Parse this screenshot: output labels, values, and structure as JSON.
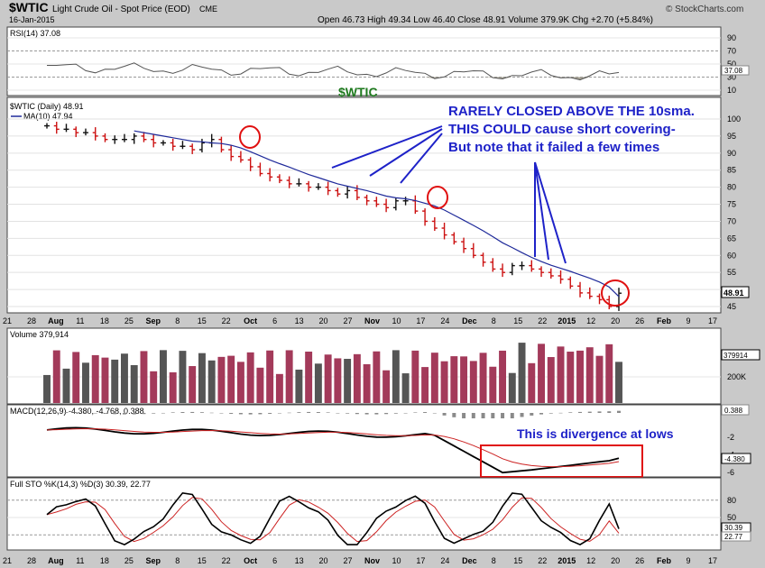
{
  "header": {
    "symbol": "$WTIC",
    "name": "Light Crude Oil - Spot Price (EOD)",
    "exchange": "CME",
    "date": "16-Jan-2015",
    "source": "© StockCharts.com",
    "ohlc": "Open 46.73  High 49.34  Low 46.40  Close 48.91  Volume 379.9K  Chg +2.70 (+5.84%)",
    "chg_arrow": "▲"
  },
  "panels": {
    "rsi": {
      "legend": "RSI(14) 37.08",
      "value_tag": "37.08",
      "ticks": [
        "90",
        "70",
        "50",
        "30",
        "10"
      ],
      "overlay": "$WTIC"
    },
    "price": {
      "legend_1": "$WTIC (Daily) 48.91",
      "legend_2": "MA(10) 47.94",
      "value_tag": "48.91",
      "ticks": [
        "100",
        "95",
        "90",
        "85",
        "80",
        "75",
        "70",
        "65",
        "60",
        "55",
        "50",
        "45"
      ]
    },
    "volume": {
      "legend": "Volume 379,914",
      "value_tag": "379914",
      "ticks": [
        "200K"
      ]
    },
    "macd": {
      "legend": "MACD(12,26,9) -4.380, -4.768, 0.388",
      "value_tag_1": "0.388",
      "value_tag_2": "-4.380",
      "ticks": [
        "-2",
        "-4",
        "-6"
      ]
    },
    "sto": {
      "legend": "Full STO %K(14,3) %D(3) 30.39, 22.77",
      "value_tag_1": "30.39",
      "value_tag_2": "22.77",
      "ticks": [
        "80",
        "50",
        "20"
      ]
    }
  },
  "date_axis": [
    "21",
    "28",
    "Aug",
    "11",
    "18",
    "25",
    "Sep",
    "8",
    "15",
    "22",
    "Oct",
    "6",
    "13",
    "20",
    "27",
    "Nov",
    "10",
    "17",
    "24",
    "Dec",
    "8",
    "15",
    "22",
    "2015",
    "12",
    "20",
    "26",
    "Feb",
    "9",
    "17"
  ],
  "annotations": {
    "main_line_1": "RARELY CLOSED ABOVE THE 10sma.",
    "main_line_2": "THIS COULD cause short covering-",
    "main_line_3": "But note that it failed a few times",
    "macd_note": "This is divergence at lows"
  },
  "colors": {
    "up": "#111111",
    "down": "#cc1111",
    "ma": "#1f2a9a",
    "vol_up": "#555555",
    "vol_down": "#a33a5a",
    "annotation": "#1e22c8",
    "circle": "#e01010",
    "sto_k": "#000000",
    "sto_d": "#cc2222"
  },
  "chart_data": {
    "type": "line",
    "price_axis_range": [
      45,
      100
    ],
    "close_series_approx": [
      98,
      97,
      97,
      96,
      96,
      95,
      94,
      94,
      94,
      95,
      94,
      93,
      93,
      92,
      92,
      91,
      93,
      94,
      91,
      89,
      88,
      86,
      84,
      83,
      82,
      81,
      81,
      80,
      80,
      79,
      78,
      79,
      77,
      76,
      75,
      74,
      76,
      76,
      73,
      70,
      68,
      66,
      64,
      62,
      60,
      58,
      56,
      55,
      57,
      57,
      56,
      55,
      54,
      53,
      51,
      49,
      48,
      47,
      45,
      48.91
    ],
    "ma10_approx": [
      null,
      null,
      null,
      null,
      null,
      null,
      null,
      null,
      null,
      96.5,
      96,
      95.5,
      95,
      94.5,
      94,
      93.5,
      93.3,
      93,
      92.8,
      92.3,
      91.5,
      90.4,
      89.2,
      88,
      86.9,
      85.9,
      84.8,
      83.7,
      82.8,
      81.9,
      81,
      80.3,
      79.6,
      79,
      78.2,
      77.4,
      76.9,
      76.6,
      76.1,
      75.3,
      74.5,
      73.3,
      71.8,
      70.3,
      68.8,
      67.2,
      65.5,
      63.7,
      62.3,
      60.8,
      59.4,
      58.2,
      57.1,
      56.2,
      55.3,
      54.3,
      53.3,
      52.2,
      50.7,
      47.94
    ],
    "rsi": {
      "last": 37.08,
      "range": [
        10,
        90
      ]
    },
    "volume": {
      "last": 379914
    },
    "macd": {
      "macd": -4.38,
      "signal": -4.768,
      "histogram": 0.388
    },
    "full_sto": {
      "k": 30.39,
      "d": 22.77,
      "range": [
        0,
        100
      ]
    }
  }
}
